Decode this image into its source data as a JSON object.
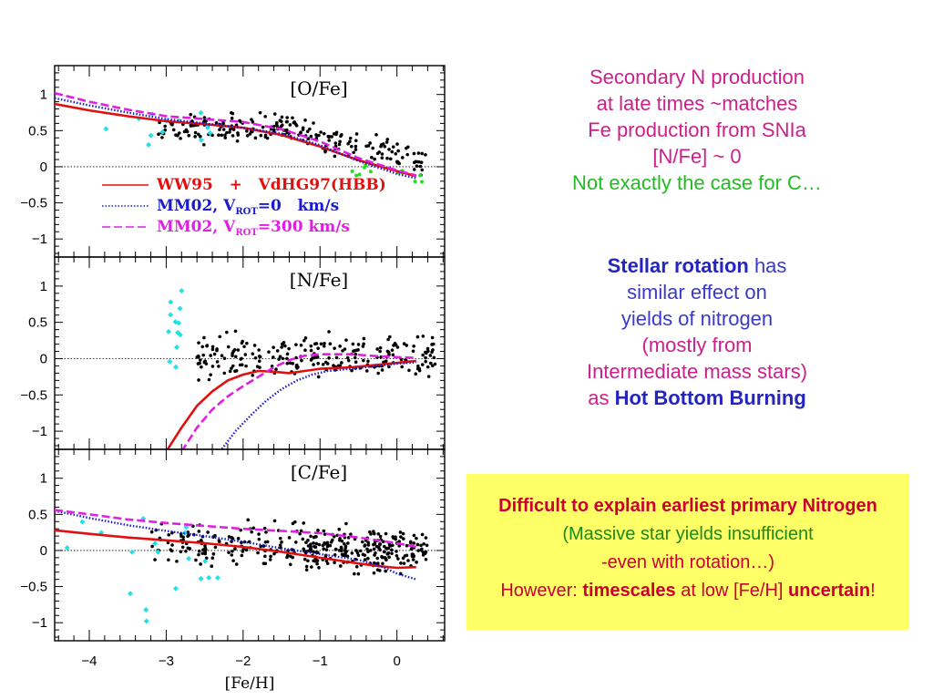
{
  "text_blocks": {
    "secondary": {
      "lines": [
        "Secondary N production",
        "at late times ~matches",
        "Fe production from SNIa",
        "[N/Fe] ~ 0"
      ],
      "green_line": "Not exactly the case for C…"
    },
    "rotation": {
      "line1_bold": "Stellar rotation",
      "line1_rest": " has",
      "line2": "similar effect on",
      "line3": "yields of nitrogen",
      "line4": "(mostly from",
      "line5": "Intermediate mass stars)",
      "line6_pre": "as ",
      "line6_bold": "Hot Bottom Burning"
    },
    "yellow_box": {
      "title": "Difficult to explain earliest primary Nitrogen",
      "line2": "(Massive star yields insufficient",
      "line3": "-even with rotation…)",
      "line4_pre": "However: ",
      "line4_bold1": "timescales",
      "line4_mid": " at low [Fe/H] ",
      "line4_bold2": "uncertain",
      "line4_end": "!"
    }
  },
  "colors": {
    "ww95": "#e01010",
    "mm02_v0": "#1a1ad0",
    "mm02_v300": "#e020e0",
    "data_black": "#000000",
    "data_cyan": "#22e0e8",
    "data_green": "#22dd22"
  },
  "chart_data": {
    "type": "scatter",
    "xlabel": "[Fe/H]",
    "x_ticks": [
      "−4",
      "−3",
      "−2",
      "−1",
      "0"
    ],
    "xlim": [
      -4.45,
      0.62
    ],
    "y_tick_labels": [
      "1",
      "0.5",
      "0",
      "−0.5",
      "−1"
    ],
    "legend": {
      "placement": "lower-left of top panel",
      "entries": [
        {
          "series": "ww95",
          "label": "WW95   +   VdHG97(HBB)"
        },
        {
          "series": "mm02_v0",
          "label_pre": "MM02, V",
          "label_sub": "ROT",
          "label_post": "=0   km/s"
        },
        {
          "series": "mm02_v300",
          "label_pre": "MM02, V",
          "label_sub": "ROT",
          "label_post": "=300 km/s"
        }
      ]
    },
    "panels": [
      {
        "title": "[O/Fe]",
        "ylim": [
          -1.25,
          1.4
        ],
        "series": {
          "ww95": [
            [
              -4.45,
              0.87
            ],
            [
              -4.0,
              0.78
            ],
            [
              -3.5,
              0.7
            ],
            [
              -3.0,
              0.63
            ],
            [
              -2.5,
              0.59
            ],
            [
              -2.0,
              0.54
            ],
            [
              -1.5,
              0.44
            ],
            [
              -1.0,
              0.28
            ],
            [
              -0.5,
              0.09
            ],
            [
              0.0,
              -0.06
            ],
            [
              0.25,
              -0.13
            ]
          ],
          "mm02_v0": [
            [
              -4.45,
              0.95
            ],
            [
              -4.0,
              0.85
            ],
            [
              -3.5,
              0.75
            ],
            [
              -3.0,
              0.66
            ],
            [
              -2.5,
              0.6
            ],
            [
              -2.0,
              0.54
            ],
            [
              -1.5,
              0.46
            ],
            [
              -1.0,
              0.3
            ],
            [
              -0.5,
              0.08
            ],
            [
              0.0,
              -0.1
            ],
            [
              0.25,
              -0.16
            ]
          ],
          "mm02_v300": [
            [
              -4.45,
              1.02
            ],
            [
              -4.0,
              0.9
            ],
            [
              -3.5,
              0.79
            ],
            [
              -3.0,
              0.7
            ],
            [
              -2.5,
              0.66
            ],
            [
              -2.0,
              0.62
            ],
            [
              -1.5,
              0.52
            ],
            [
              -1.0,
              0.35
            ],
            [
              -0.5,
              0.12
            ],
            [
              0.0,
              -0.05
            ],
            [
              0.25,
              -0.12
            ]
          ]
        }
      },
      {
        "title": "[N/Fe]",
        "ylim": [
          -1.25,
          1.4
        ],
        "series": {
          "ww95": [
            [
              -3.0,
              -1.28
            ],
            [
              -2.8,
              -0.95
            ],
            [
              -2.6,
              -0.65
            ],
            [
              -2.4,
              -0.45
            ],
            [
              -2.2,
              -0.3
            ],
            [
              -2.0,
              -0.22
            ],
            [
              -1.8,
              -0.17
            ],
            [
              -1.6,
              -0.18
            ],
            [
              -1.4,
              -0.2
            ],
            [
              -1.2,
              -0.17
            ],
            [
              -1.0,
              -0.14
            ],
            [
              -0.6,
              -0.12
            ],
            [
              -0.2,
              -0.08
            ],
            [
              0.25,
              -0.03
            ]
          ],
          "mm02_v0": [
            [
              -2.3,
              -1.28
            ],
            [
              -2.1,
              -1.0
            ],
            [
              -1.9,
              -0.78
            ],
            [
              -1.7,
              -0.58
            ],
            [
              -1.5,
              -0.42
            ],
            [
              -1.3,
              -0.3
            ],
            [
              -1.1,
              -0.22
            ],
            [
              -0.9,
              -0.17
            ],
            [
              -0.5,
              -0.13
            ],
            [
              0.0,
              -0.07
            ],
            [
              0.25,
              -0.05
            ]
          ],
          "mm02_v300": [
            [
              -2.8,
              -1.28
            ],
            [
              -2.6,
              -0.95
            ],
            [
              -2.4,
              -0.7
            ],
            [
              -2.2,
              -0.52
            ],
            [
              -2.0,
              -0.38
            ],
            [
              -1.8,
              -0.25
            ],
            [
              -1.6,
              -0.12
            ],
            [
              -1.4,
              -0.02
            ],
            [
              -1.2,
              0.04
            ],
            [
              -1.0,
              0.06
            ],
            [
              -0.6,
              0.06
            ],
            [
              -0.2,
              0.03
            ],
            [
              0.25,
              0.01
            ]
          ]
        }
      },
      {
        "title": "[C/Fe]",
        "ylim": [
          -1.25,
          1.4
        ],
        "series": {
          "ww95": [
            [
              -4.45,
              0.28
            ],
            [
              -4.0,
              0.23
            ],
            [
              -3.5,
              0.18
            ],
            [
              -3.0,
              0.14
            ],
            [
              -2.5,
              0.1
            ],
            [
              -2.0,
              0.05
            ],
            [
              -1.5,
              -0.02
            ],
            [
              -1.0,
              -0.1
            ],
            [
              -0.5,
              -0.18
            ],
            [
              -0.2,
              -0.22
            ],
            [
              0.0,
              -0.24
            ],
            [
              0.25,
              -0.23
            ]
          ],
          "mm02_v0": [
            [
              -4.45,
              0.55
            ],
            [
              -4.0,
              0.45
            ],
            [
              -3.5,
              0.35
            ],
            [
              -3.0,
              0.27
            ],
            [
              -2.5,
              0.2
            ],
            [
              -2.0,
              0.12
            ],
            [
              -1.5,
              0.03
            ],
            [
              -1.0,
              -0.05
            ],
            [
              -0.5,
              -0.13
            ],
            [
              -0.2,
              -0.22
            ],
            [
              0.0,
              -0.32
            ],
            [
              0.25,
              -0.4
            ]
          ],
          "mm02_v300": [
            [
              -4.45,
              0.56
            ],
            [
              -4.0,
              0.5
            ],
            [
              -3.5,
              0.43
            ],
            [
              -3.0,
              0.38
            ],
            [
              -2.5,
              0.34
            ],
            [
              -2.0,
              0.3
            ],
            [
              -1.5,
              0.27
            ],
            [
              -1.0,
              0.24
            ],
            [
              -0.5,
              0.18
            ],
            [
              0.0,
              0.1
            ],
            [
              0.25,
              0.05
            ]
          ]
        }
      }
    ]
  }
}
